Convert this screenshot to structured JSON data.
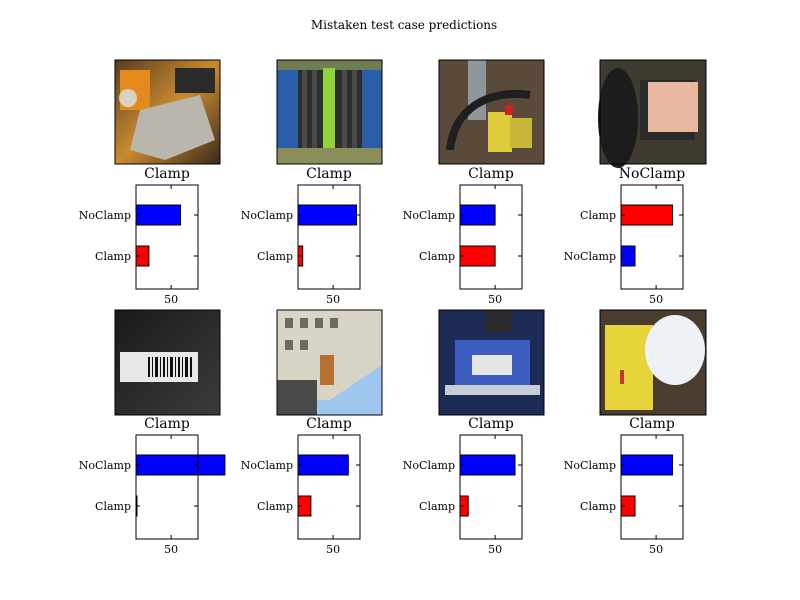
{
  "title": "Mistaken test case predictions",
  "colors": {
    "noclamp_bar": "#0000ff",
    "clamp_bar": "#ff0000",
    "edge": "#000000"
  },
  "chart_data": {
    "type": "bar",
    "orientation": "horizontal",
    "xticks": [
      50
    ],
    "xlim": [
      20,
      73
    ],
    "panels": [
      {
        "image": "industrial-clamp-closeup-photo",
        "caption": "Clamp",
        "series": [
          {
            "name": "NoClamp",
            "value": 58
          },
          {
            "name": "Clamp",
            "value": 31
          }
        ]
      },
      {
        "image": "green-strapped-pipe-photo",
        "caption": "Clamp",
        "series": [
          {
            "name": "NoClamp",
            "value": 70
          },
          {
            "name": "Clamp",
            "value": 24
          }
        ]
      },
      {
        "image": "yellow-machinery-photo",
        "caption": "Clamp",
        "series": [
          {
            "name": "NoClamp",
            "value": 50
          },
          {
            "name": "Clamp",
            "value": 50
          }
        ]
      },
      {
        "image": "tire-with-tag-photo",
        "caption": "NoClamp",
        "series": [
          {
            "name": "Clamp",
            "value": 64
          },
          {
            "name": "NoClamp",
            "value": 32
          }
        ]
      },
      {
        "image": "barcode-label-photo",
        "caption": "Clamp",
        "series": [
          {
            "name": "NoClamp",
            "value": 96
          },
          {
            "name": "Clamp",
            "value": 2
          }
        ]
      },
      {
        "image": "tilted-building-photo",
        "caption": "Clamp",
        "series": [
          {
            "name": "NoClamp",
            "value": 63
          },
          {
            "name": "Clamp",
            "value": 31
          }
        ]
      },
      {
        "image": "blue-clamp-with-barcode-photo",
        "caption": "Clamp",
        "series": [
          {
            "name": "NoClamp",
            "value": 67
          },
          {
            "name": "Clamp",
            "value": 27
          }
        ]
      },
      {
        "image": "yellow-cylinder-photo",
        "caption": "Clamp",
        "series": [
          {
            "name": "NoClamp",
            "value": 64
          },
          {
            "name": "Clamp",
            "value": 32
          }
        ]
      }
    ]
  }
}
